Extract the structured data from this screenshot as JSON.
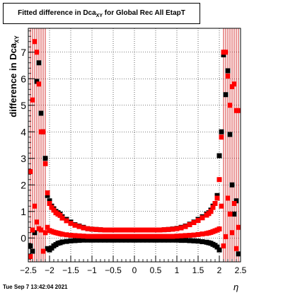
{
  "chart_data": {
    "type": "scatter",
    "title_main": "Fitted difference in Dca",
    "title_sub": "XY",
    "title_tail": " for Global Rec All EtapT",
    "ylabel_main": "difference in Dca",
    "ylabel_sub": "XY",
    "xlabel": "η",
    "xlim": [
      -2.5,
      2.5
    ],
    "ylim": [
      -0.9,
      7.9
    ],
    "x_ticks": [
      "−2.5",
      "−2",
      "−1.5",
      "−1",
      "−0.5",
      "0",
      "0.5",
      "1",
      "1.5",
      "2",
      "2.5"
    ],
    "y_ticks": [
      "0",
      "1",
      "2",
      "3",
      "4",
      "5",
      "6",
      "7"
    ],
    "grid": true,
    "colors": {
      "black_series": "#000000",
      "red_series": "#ff0000",
      "error_bar": "#cc0000"
    },
    "series": [
      {
        "color": "black",
        "x": [
          -2.45,
          -2.4,
          -2.35,
          -2.3,
          -2.25,
          -2.2,
          -2.15,
          -2.1,
          -2.05,
          -2.0,
          -1.95,
          -1.9,
          -1.85,
          -1.8,
          -1.75,
          -1.7,
          -1.6,
          -1.5,
          -1.4,
          -1.3,
          -1.2,
          -1.1,
          -1.0,
          -0.9,
          -0.8,
          -0.7,
          -0.6,
          -0.5,
          -0.4,
          -0.3,
          -0.2,
          -0.1,
          0.0,
          0.1,
          0.2,
          0.3,
          0.4,
          0.5,
          0.6,
          0.7,
          0.8,
          0.9,
          1.0,
          1.1,
          1.2,
          1.3,
          1.4,
          1.5,
          1.6,
          1.7,
          1.75,
          1.8,
          1.85,
          1.9,
          1.95,
          2.0,
          2.05,
          2.1,
          2.15,
          2.2,
          2.25,
          2.3,
          2.35,
          2.4,
          2.45
        ],
        "y": [
          -0.3,
          -0.5,
          0.2,
          5.9,
          6.6,
          4.7,
          4.0,
          3.0,
          1.6,
          1.4,
          1.2,
          1.1,
          1.0,
          0.95,
          0.9,
          0.8,
          0.7,
          0.6,
          0.5,
          0.45,
          0.4,
          0.35,
          0.33,
          0.32,
          0.31,
          0.3,
          0.3,
          0.3,
          0.3,
          0.3,
          0.3,
          0.3,
          0.3,
          0.3,
          0.3,
          0.3,
          0.3,
          0.3,
          0.3,
          0.31,
          0.32,
          0.34,
          0.36,
          0.4,
          0.45,
          0.52,
          0.6,
          0.7,
          0.8,
          0.9,
          0.95,
          1.05,
          1.2,
          1.3,
          1.6,
          3.1,
          4.0,
          6.9,
          5.4,
          6.3,
          3.9,
          2.0,
          0.9,
          1.4,
          -0.6
        ]
      },
      {
        "color": "black",
        "x": [
          -2.05,
          -2.0,
          -1.95,
          -1.9,
          -1.85,
          -1.8,
          -1.75,
          -1.7,
          -1.6,
          -1.5,
          -1.4,
          -1.3,
          -1.2,
          -1.1,
          -1.0,
          -0.9,
          -0.8,
          -0.7,
          -0.6,
          -0.5,
          -0.4,
          -0.3,
          -0.2,
          -0.1,
          0.0,
          0.1,
          0.2,
          0.3,
          0.4,
          0.5,
          0.6,
          0.7,
          0.8,
          0.9,
          1.0,
          1.1,
          1.2,
          1.3,
          1.4,
          1.5,
          1.6,
          1.7,
          1.75,
          1.8,
          1.85,
          1.9,
          1.95,
          2.0
        ],
        "y": [
          -0.4,
          -0.45,
          -0.38,
          -0.3,
          -0.25,
          -0.2,
          -0.18,
          -0.15,
          -0.13,
          -0.11,
          -0.1,
          -0.09,
          -0.08,
          -0.08,
          -0.08,
          -0.08,
          -0.08,
          -0.08,
          -0.08,
          -0.08,
          -0.08,
          -0.08,
          -0.08,
          -0.08,
          -0.08,
          -0.08,
          -0.08,
          -0.08,
          -0.08,
          -0.08,
          -0.08,
          -0.08,
          -0.08,
          -0.08,
          -0.08,
          -0.09,
          -0.09,
          -0.1,
          -0.11,
          -0.12,
          -0.14,
          -0.16,
          -0.18,
          -0.2,
          -0.24,
          -0.28,
          -0.34,
          -0.45
        ]
      },
      {
        "color": "red",
        "x": [
          -2.45,
          -2.4,
          -2.35,
          -2.3,
          -2.25,
          -2.2,
          -2.15,
          -2.1,
          -2.05,
          -2.0,
          -1.95,
          -1.9,
          -1.85,
          -1.8,
          -1.75,
          -1.7,
          -1.6,
          -1.5,
          -1.4,
          -1.3,
          -1.2,
          -1.1,
          -1.0,
          -0.9,
          -0.8,
          -0.7,
          -0.6,
          -0.5,
          -0.4,
          -0.3,
          -0.2,
          -0.1,
          0.0,
          0.1,
          0.2,
          0.3,
          0.4,
          0.5,
          0.6,
          0.7,
          0.8,
          0.9,
          1.0,
          1.1,
          1.2,
          1.3,
          1.4,
          1.5,
          1.6,
          1.7,
          1.75,
          1.8,
          1.85,
          1.9,
          1.95,
          2.0,
          2.05,
          2.1,
          2.15,
          2.2,
          2.25,
          2.3,
          2.35,
          2.4,
          2.45
        ],
        "y": [
          2.5,
          5.2,
          7.4,
          7.0,
          5.8,
          4.0,
          4.0,
          2.8,
          1.7,
          1.3,
          1.15,
          1.05,
          0.95,
          0.9,
          0.85,
          0.75,
          0.65,
          0.55,
          0.48,
          0.43,
          0.38,
          0.35,
          0.33,
          0.32,
          0.31,
          0.3,
          0.3,
          0.3,
          0.3,
          0.3,
          0.3,
          0.3,
          0.3,
          0.3,
          0.3,
          0.3,
          0.3,
          0.3,
          0.3,
          0.31,
          0.32,
          0.33,
          0.35,
          0.38,
          0.43,
          0.5,
          0.58,
          0.66,
          0.76,
          0.86,
          0.92,
          1.0,
          1.15,
          1.3,
          1.5,
          2.2,
          3.8,
          7.0,
          7.0,
          6.1,
          5.0,
          5.7,
          5.8,
          4.8,
          4.8
        ]
      },
      {
        "color": "red",
        "x": [
          -2.45,
          -2.4,
          -2.35,
          -2.3,
          -2.25,
          -2.2,
          -2.15,
          -2.1,
          -2.05,
          -2.0,
          -1.95,
          -1.9,
          -1.85,
          -1.8,
          -1.75,
          -1.7,
          -1.6,
          -1.5,
          -1.4,
          -1.3,
          -1.2,
          -1.1,
          -1.0,
          -0.9,
          -0.8,
          -0.7,
          -0.6,
          -0.5,
          -0.4,
          -0.3,
          -0.2,
          -0.1,
          0.0,
          0.1,
          0.2,
          0.3,
          0.4,
          0.5,
          0.6,
          0.7,
          0.8,
          0.9,
          1.0,
          1.1,
          1.2,
          1.3,
          1.4,
          1.5,
          1.6,
          1.7,
          1.75,
          1.8,
          1.85,
          1.9,
          1.95,
          2.0,
          2.05,
          2.1,
          2.15,
          2.2,
          2.25,
          2.3,
          2.35,
          2.4,
          2.45
        ],
        "y": [
          -0.7,
          0.3,
          1.2,
          0.6,
          0.35,
          0.3,
          -0.5,
          0.2,
          0.4,
          0.28,
          0.25,
          0.22,
          0.2,
          0.18,
          0.16,
          0.14,
          0.12,
          0.1,
          0.09,
          0.08,
          0.07,
          0.06,
          0.06,
          0.06,
          0.06,
          0.06,
          0.06,
          0.06,
          0.06,
          0.06,
          0.06,
          0.06,
          0.06,
          0.06,
          0.06,
          0.06,
          0.06,
          0.06,
          0.06,
          0.06,
          0.06,
          0.06,
          0.07,
          0.08,
          0.09,
          0.1,
          0.11,
          0.13,
          0.15,
          0.17,
          0.19,
          0.21,
          0.24,
          0.27,
          0.3,
          0.34,
          1.2,
          -0.3,
          0.05,
          1.5,
          0.9,
          0.2,
          1.3,
          -0.4,
          0.4
        ]
      }
    ],
    "error_band_x": [
      -2.45,
      -2.4,
      -2.35,
      -2.3,
      -2.25,
      -2.2,
      -2.15,
      -2.1,
      2.1,
      2.15,
      2.2,
      2.25,
      2.3,
      2.35,
      2.4,
      2.45
    ]
  },
  "footer": {
    "timestamp": "Tue Sep  7 13:42:04 2021"
  }
}
